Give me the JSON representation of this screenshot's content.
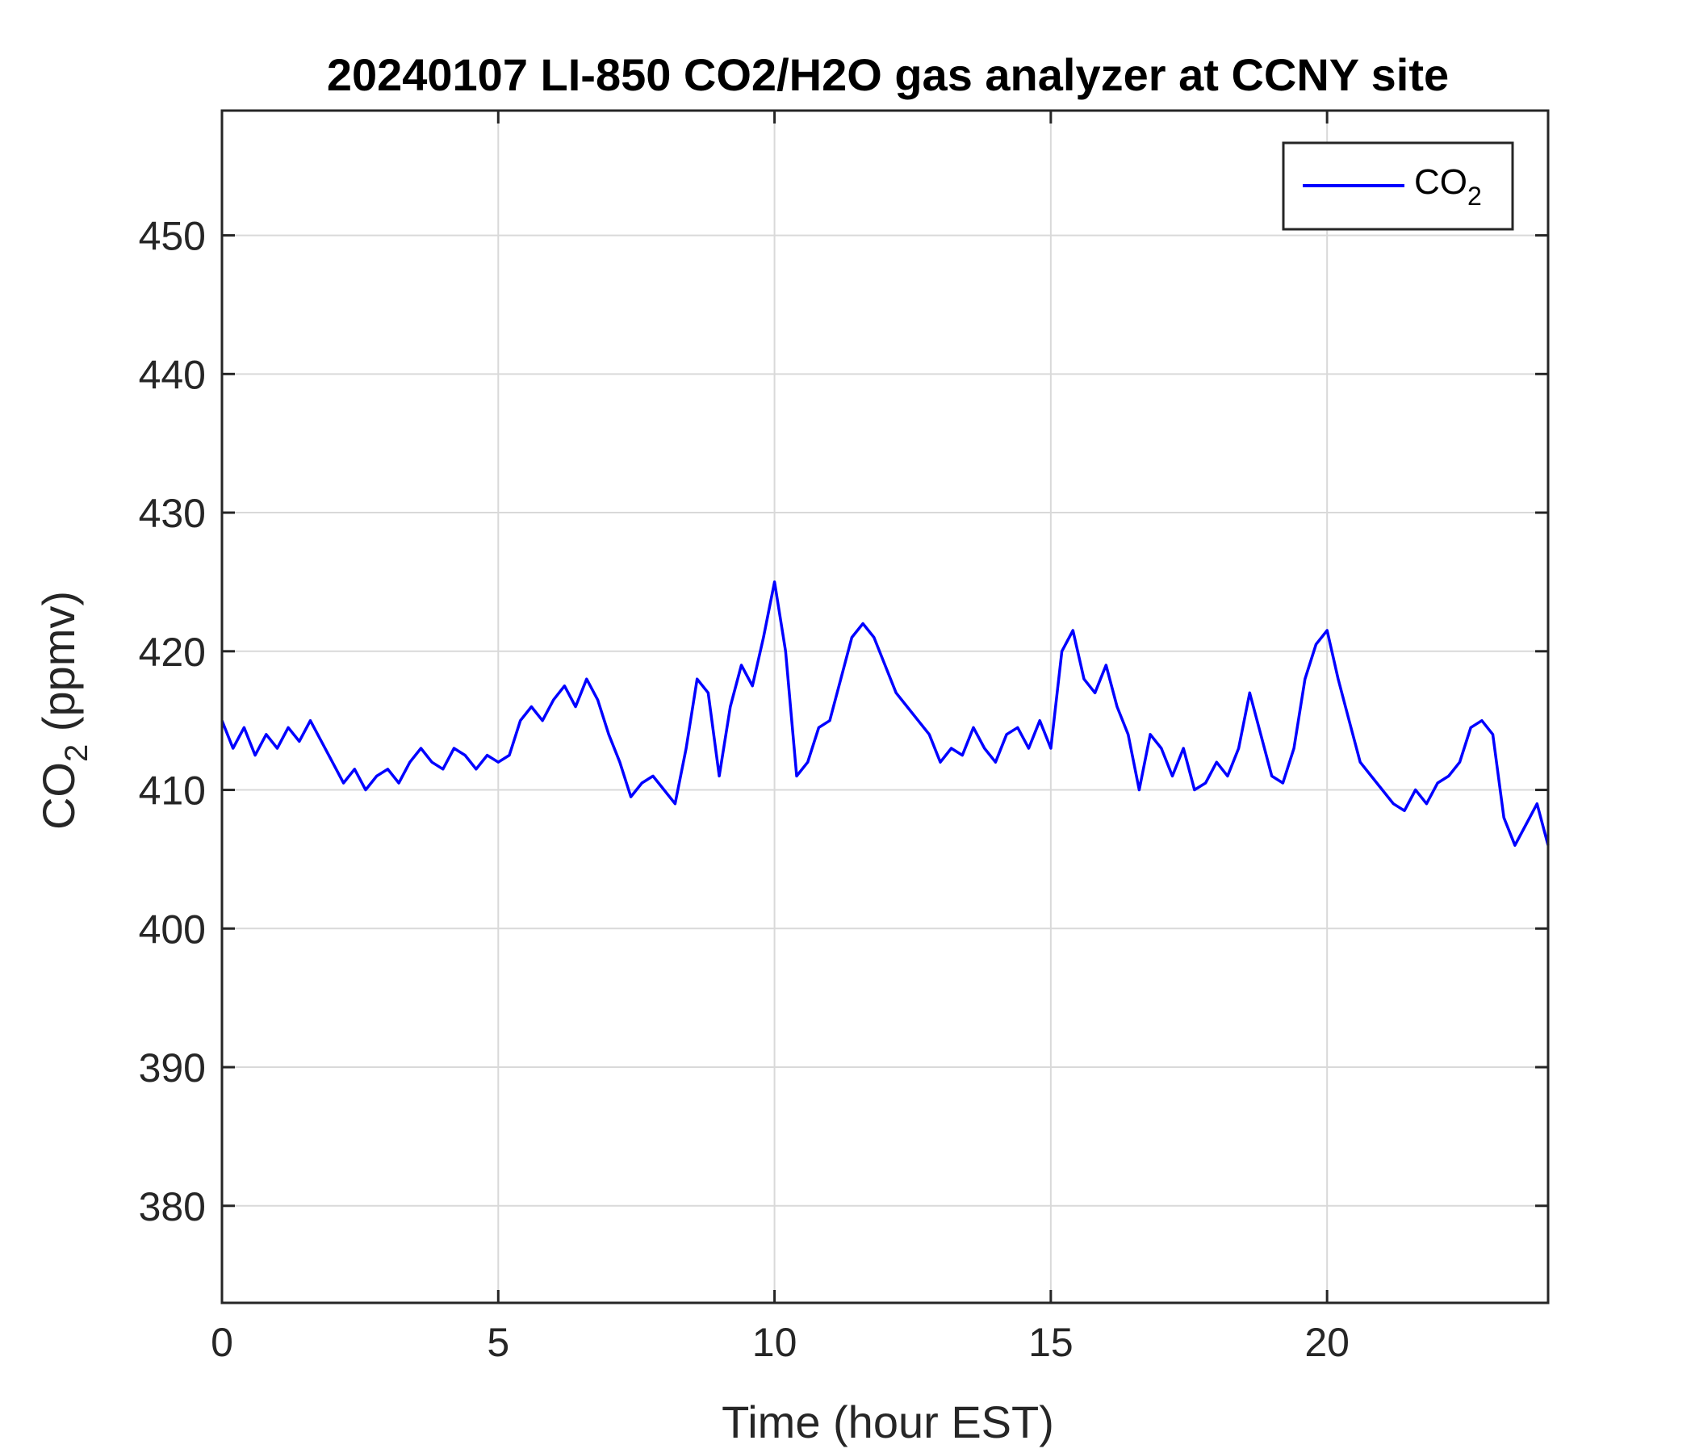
{
  "chart_data": {
    "type": "line",
    "title": "20240107 LI-850 CO2/H2O gas analyzer at CCNY site",
    "xlabel": "Time (hour EST)",
    "ylabel": {
      "main": "CO",
      "sub": "2",
      "suffix": " (ppmv)"
    },
    "xlim": [
      0,
      24
    ],
    "ylim": [
      373,
      459
    ],
    "xticks": [
      0,
      5,
      10,
      15,
      20
    ],
    "yticks": [
      380,
      390,
      400,
      410,
      420,
      430,
      440,
      450
    ],
    "xtick_labels": [
      "0",
      "5",
      "10",
      "15",
      "20"
    ],
    "ytick_labels": [
      "380",
      "390",
      "400",
      "410",
      "420",
      "430",
      "440",
      "450"
    ],
    "grid": true,
    "legend_position": "top-right",
    "colors": {
      "line": "#0000ff",
      "grid": "#d9d9d9",
      "axes": "#262626"
    },
    "series": [
      {
        "legend_label": {
          "main": "CO",
          "sub": "2"
        },
        "x": [
          0.0,
          0.2,
          0.4,
          0.6,
          0.8,
          1.0,
          1.2,
          1.4,
          1.6,
          1.8,
          2.0,
          2.2,
          2.4,
          2.6,
          2.8,
          3.0,
          3.2,
          3.4,
          3.6,
          3.8,
          4.0,
          4.2,
          4.4,
          4.6,
          4.8,
          5.0,
          5.2,
          5.4,
          5.6,
          5.8,
          6.0,
          6.2,
          6.4,
          6.6,
          6.8,
          7.0,
          7.2,
          7.4,
          7.6,
          7.8,
          8.0,
          8.2,
          8.4,
          8.6,
          8.8,
          9.0,
          9.2,
          9.4,
          9.6,
          9.8,
          10.0,
          10.2,
          10.4,
          10.6,
          10.8,
          11.0,
          11.2,
          11.4,
          11.6,
          11.8,
          12.0,
          12.2,
          12.4,
          12.6,
          12.8,
          13.0,
          13.2,
          13.4,
          13.6,
          13.8,
          14.0,
          14.2,
          14.4,
          14.6,
          14.8,
          15.0,
          15.2,
          15.4,
          15.6,
          15.8,
          16.0,
          16.2,
          16.4,
          16.6,
          16.8,
          17.0,
          17.2,
          17.4,
          17.6,
          17.8,
          18.0,
          18.2,
          18.4,
          18.6,
          18.8,
          19.0,
          19.2,
          19.4,
          19.6,
          19.8,
          20.0,
          20.2,
          20.4,
          20.6,
          20.8,
          21.0,
          21.2,
          21.4,
          21.6,
          21.8,
          22.0,
          22.2,
          22.4,
          22.6,
          22.8,
          23.0,
          23.2,
          23.4,
          23.6,
          23.8,
          24.0
        ],
        "values": [
          415.0,
          413.0,
          414.5,
          412.5,
          414.0,
          413.0,
          414.5,
          413.5,
          415.0,
          413.5,
          412.0,
          410.5,
          411.5,
          410.0,
          411.0,
          411.5,
          410.5,
          412.0,
          413.0,
          412.0,
          411.5,
          413.0,
          412.5,
          411.5,
          412.5,
          412.0,
          412.5,
          415.0,
          416.0,
          415.0,
          416.5,
          417.5,
          416.0,
          418.0,
          416.5,
          414.0,
          412.0,
          409.5,
          410.5,
          411.0,
          410.0,
          409.0,
          413.0,
          418.0,
          417.0,
          411.0,
          416.0,
          419.0,
          417.5,
          421.0,
          425.0,
          420.0,
          411.0,
          412.0,
          414.5,
          415.0,
          418.0,
          421.0,
          422.0,
          421.0,
          419.0,
          417.0,
          416.0,
          415.0,
          414.0,
          412.0,
          413.0,
          412.5,
          414.5,
          413.0,
          412.0,
          414.0,
          414.5,
          413.0,
          415.0,
          413.0,
          420.0,
          421.5,
          418.0,
          417.0,
          419.0,
          416.0,
          414.0,
          410.0,
          414.0,
          413.0,
          411.0,
          413.0,
          410.0,
          410.5,
          412.0,
          411.0,
          413.0,
          417.0,
          414.0,
          411.0,
          410.5,
          413.0,
          418.0,
          420.5,
          421.5,
          418.0,
          415.0,
          412.0,
          411.0,
          410.0,
          409.0,
          408.5,
          410.0,
          409.0,
          410.5,
          411.0,
          412.0,
          414.5,
          415.0,
          414.0,
          408.0,
          406.0,
          407.5,
          409.0,
          406.0
        ]
      }
    ]
  }
}
